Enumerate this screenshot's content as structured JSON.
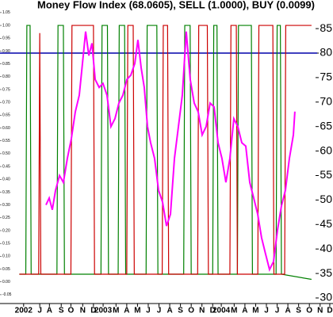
{
  "chart_data": {
    "type": "line",
    "title": "Money Flow Index (68.0605), SELL (1.0000), BUY (0.0099)",
    "xlim": [
      0,
      31
    ],
    "xticks": [
      {
        "value": 2.2,
        "label": "2002"
      },
      {
        "value": 3.7,
        "label": "J"
      },
      {
        "value": 4.6,
        "label": "A"
      },
      {
        "value": 5.7,
        "label": "S"
      },
      {
        "value": 6.6,
        "label": "O"
      },
      {
        "value": 7.7,
        "label": "N"
      },
      {
        "value": 8.7,
        "label": "D"
      },
      {
        "value": 9.6,
        "label": "2003"
      },
      {
        "value": 10.8,
        "label": "M"
      },
      {
        "value": 11.8,
        "label": "A"
      },
      {
        "value": 12.8,
        "label": "M"
      },
      {
        "value": 13.8,
        "label": "J"
      },
      {
        "value": 14.8,
        "label": "J"
      },
      {
        "value": 15.8,
        "label": "A"
      },
      {
        "value": 16.8,
        "label": "S"
      },
      {
        "value": 17.8,
        "label": "O"
      },
      {
        "value": 18.8,
        "label": "N"
      },
      {
        "value": 19.8,
        "label": "D"
      },
      {
        "value": 20.6,
        "label": "2004"
      },
      {
        "value": 21.8,
        "label": "M"
      },
      {
        "value": 22.8,
        "label": "A"
      },
      {
        "value": 23.8,
        "label": "M"
      },
      {
        "value": 24.8,
        "label": "J"
      },
      {
        "value": 25.8,
        "label": "J"
      },
      {
        "value": 26.8,
        "label": "A"
      },
      {
        "value": 27.8,
        "label": "S"
      },
      {
        "value": 28.8,
        "label": "O"
      },
      {
        "value": 29.8,
        "label": "N"
      },
      {
        "value": 30.7,
        "label": "D"
      }
    ],
    "ylim": [
      -0.075,
      1.062
    ],
    "yticks": [
      1.05,
      {
        "value": 1.0,
        "label": "1.00"
      },
      0.95,
      {
        "value": 0.9,
        "label": "0.90"
      },
      0.85,
      {
        "value": 0.8,
        "label": "0.80"
      },
      0.75,
      {
        "value": 0.7,
        "label": "0.70"
      },
      0.65,
      {
        "value": 0.6,
        "label": "0.60"
      },
      0.55,
      {
        "value": 0.5,
        "label": "0.50"
      },
      0.45,
      {
        "value": 0.4,
        "label": "0.40"
      },
      0.35,
      {
        "value": 0.3,
        "label": "0.30"
      },
      0.25,
      {
        "value": 0.2,
        "label": "0.20"
      },
      0.15,
      {
        "value": 0.1,
        "label": "0.10"
      },
      0.05,
      {
        "value": 0.0,
        "label": "0.00"
      },
      -0.05
    ],
    "y2lim": [
      29.35,
      88.9
    ],
    "y2ticks": [
      85,
      80,
      75,
      70,
      65,
      60,
      55,
      50,
      45,
      40,
      35,
      30
    ],
    "hline": {
      "value": 80,
      "axis": "y2",
      "color": "#0000aa"
    },
    "series": [
      {
        "color": "#008000",
        "x": [
          1.8,
          2.4,
          2.5,
          2.8,
          2.9,
          5.3,
          5.4,
          5.9,
          6.0,
          9.4,
          9.5,
          10.0,
          10.1,
          11.0,
          11.1,
          11.6,
          11.7,
          13.6,
          13.7,
          14.6,
          14.7,
          17.1,
          17.2,
          17.7,
          17.8,
          19.8,
          19.9,
          20.2,
          20.3,
          22.1,
          22.2,
          23.4,
          23.5,
          25.7,
          25.8,
          26.1,
          26.2,
          29.0
        ],
        "values": [
          0.03,
          0.03,
          1.0,
          1.0,
          0.03,
          0.03,
          1.0,
          1.0,
          0.03,
          0.03,
          1.0,
          1.0,
          0.03,
          0.03,
          1.0,
          1.0,
          0.03,
          0.03,
          1.0,
          1.0,
          0.03,
          0.03,
          1.0,
          1.0,
          0.03,
          0.03,
          1.0,
          1.0,
          0.03,
          0.03,
          1.0,
          1.0,
          0.03,
          0.03,
          1.0,
          1.0,
          0.03,
          0.0099
        ]
      },
      {
        "color": "#cc0000",
        "x": [
          1.8,
          3.6,
          3.7,
          3.8,
          6.6,
          6.7,
          8.7,
          8.8,
          11.8,
          11.9,
          12.4,
          12.5,
          15.1,
          15.2,
          15.6,
          15.7,
          18.4,
          18.5,
          19.3,
          19.4,
          21.4,
          21.5,
          22.0,
          22.1,
          24.0,
          24.1,
          25.4,
          25.5,
          26.5,
          26.6,
          29.0
        ],
        "values": [
          0.03,
          0.03,
          0.97,
          0.03,
          0.03,
          1.0,
          1.0,
          0.03,
          0.03,
          1.0,
          1.0,
          0.03,
          0.03,
          1.0,
          1.0,
          0.03,
          0.03,
          1.0,
          1.0,
          0.03,
          0.03,
          1.0,
          1.0,
          0.03,
          0.03,
          1.0,
          1.0,
          0.03,
          0.03,
          1.0,
          1.0
        ]
      },
      {
        "color": "#ff00ff",
        "axis": "y2",
        "x": [
          4.28,
          4.58,
          4.87,
          5.17,
          5.54,
          5.9,
          6.27,
          6.64,
          7.01,
          7.38,
          7.75,
          7.97,
          8.27,
          8.56,
          8.86,
          9.23,
          9.59,
          9.96,
          10.33,
          10.7,
          11.07,
          11.44,
          11.81,
          12.18,
          12.55,
          12.84,
          13.14,
          13.43,
          13.73,
          14.02,
          14.39,
          14.76,
          15.13,
          15.5,
          15.87,
          16.24,
          16.61,
          16.97,
          17.34,
          17.71,
          18.08,
          18.45,
          18.82,
          19.19,
          19.56,
          19.93,
          20.3,
          20.66,
          21.03,
          21.4,
          21.77,
          22.14,
          22.51,
          22.88,
          23.25,
          23.62,
          23.99,
          24.35,
          24.72,
          25.09,
          25.46,
          25.83,
          26.2,
          26.57,
          26.94,
          27.31,
          27.45
        ],
        "values": [
          49,
          50.4,
          48,
          52,
          55,
          53.6,
          58.5,
          62.5,
          68,
          71.4,
          79.5,
          84.4,
          79.5,
          82,
          74.6,
          73,
          73.8,
          71.4,
          65,
          66.6,
          69.8,
          71.4,
          74.6,
          75.5,
          77.9,
          82.7,
          77,
          73,
          65,
          61.7,
          58.5,
          52,
          49.6,
          44.7,
          47.1,
          58.5,
          65,
          71.4,
          84.4,
          74.6,
          69.8,
          68,
          63.3,
          65,
          69.8,
          69,
          61.7,
          58.5,
          53.6,
          58.5,
          66.6,
          65,
          61.7,
          61,
          53.6,
          50.4,
          47.1,
          42.3,
          39,
          35.8,
          37.4,
          43.8,
          48.8,
          52,
          58.5,
          63.3,
          68.0605
        ]
      }
    ]
  }
}
